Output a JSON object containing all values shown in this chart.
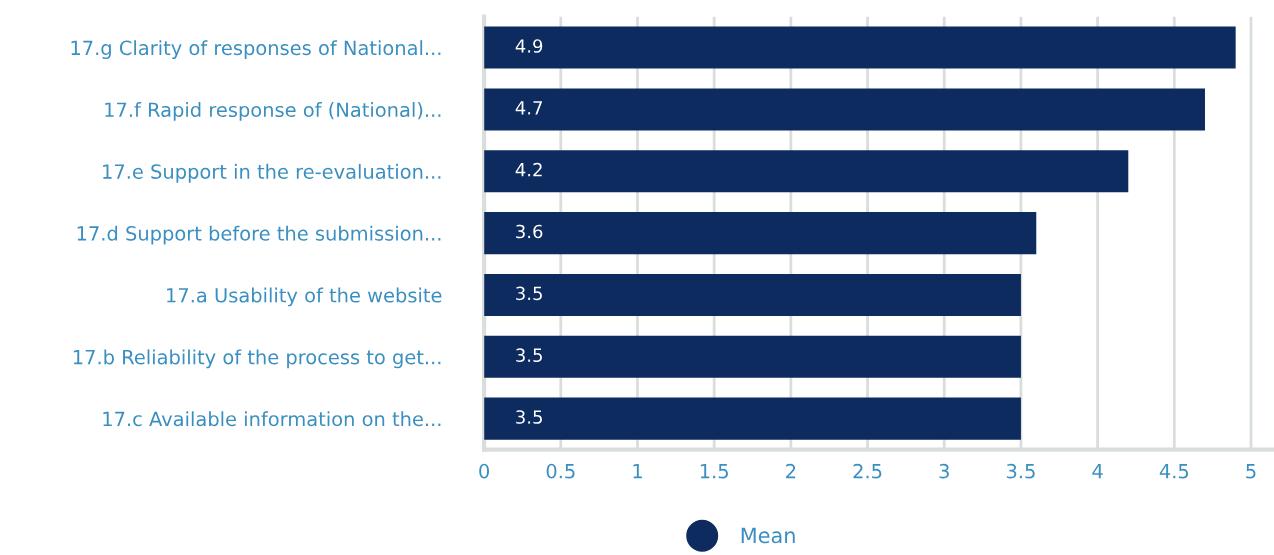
{
  "chart_data": {
    "type": "bar",
    "orientation": "horizontal",
    "categories": [
      "17.g Clarity of responses of National...",
      "17.f Rapid response of (National)...",
      "17.e Support in the re-evaluation...",
      "17.d Support before the submission...",
      "17.a Usability of the website",
      "17.b Reliability of the process to get...",
      "17.c Available information on the..."
    ],
    "series": [
      {
        "name": "Mean",
        "color": "#0d2b5e",
        "values": [
          4.9,
          4.7,
          4.2,
          3.6,
          3.5,
          3.5,
          3.5
        ]
      }
    ],
    "xlim": [
      0,
      5.15
    ],
    "xticks": [
      0,
      0.5,
      1,
      1.5,
      2,
      2.5,
      3,
      3.5,
      4,
      4.5,
      5
    ],
    "grid": "x",
    "legend": "bottom",
    "data_labels": true
  }
}
